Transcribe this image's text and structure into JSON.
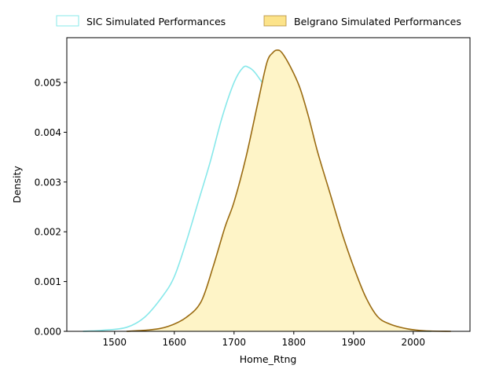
{
  "chart_data": {
    "type": "area",
    "title": "",
    "xlabel": "Home_Rtng",
    "ylabel": "Density",
    "xlim": [
      1420,
      2095
    ],
    "ylim": [
      0,
      0.0059
    ],
    "x_ticks": [
      1500,
      1600,
      1700,
      1800,
      1900,
      2000
    ],
    "x_tick_labels": [
      "1500",
      "1600",
      "1700",
      "1800",
      "1900",
      "2000"
    ],
    "y_ticks": [
      0,
      0.001,
      0.002,
      0.003,
      0.004,
      0.005
    ],
    "y_tick_labels": [
      "0.000",
      "0.001",
      "0.002",
      "0.003",
      "0.004",
      "0.005"
    ],
    "grid": false,
    "legend_position": "top (above plot, two columns)",
    "series": [
      {
        "name": "SIC Simulated Performances",
        "line_color": "#87e8ea",
        "fill_color": "#ffffff",
        "filled": false,
        "x": [
          1447,
          1480,
          1520,
          1550,
          1580,
          1600,
          1620,
          1640,
          1660,
          1680,
          1700,
          1715,
          1725,
          1735,
          1750,
          1770,
          1790,
          1800,
          1810,
          1820,
          1830,
          1850,
          1870,
          1900,
          1930,
          1960,
          1990,
          2030
        ],
        "y": [
          0,
          2e-05,
          8e-05,
          0.00028,
          0.0007,
          0.0011,
          0.0018,
          0.0026,
          0.0034,
          0.0043,
          0.005,
          0.0053,
          0.0053,
          0.0052,
          0.00495,
          0.00465,
          0.0043,
          0.0039,
          0.0033,
          0.0025,
          0.0018,
          0.001,
          0.0005,
          0.00015,
          5e-05,
          2e-05,
          1e-05,
          0
        ]
      },
      {
        "name": "Belgrano Simulated Performances",
        "line_color": "#9a6b11",
        "fill_color": "#fef4c7",
        "legend_fill": "#fce38a",
        "filled": true,
        "x": [
          1520,
          1560,
          1590,
          1620,
          1645,
          1665,
          1685,
          1700,
          1720,
          1740,
          1755,
          1765,
          1772,
          1780,
          1795,
          1810,
          1825,
          1840,
          1860,
          1880,
          1900,
          1920,
          1940,
          1960,
          1990,
          2020,
          2063
        ],
        "y": [
          0,
          3e-05,
          0.0001,
          0.00028,
          0.0006,
          0.0013,
          0.0021,
          0.0026,
          0.0035,
          0.0046,
          0.0054,
          0.0056,
          0.00565,
          0.0056,
          0.0053,
          0.0049,
          0.0043,
          0.0036,
          0.0028,
          0.002,
          0.0013,
          0.0007,
          0.0003,
          0.00015,
          5e-05,
          1e-05,
          0
        ]
      }
    ]
  }
}
